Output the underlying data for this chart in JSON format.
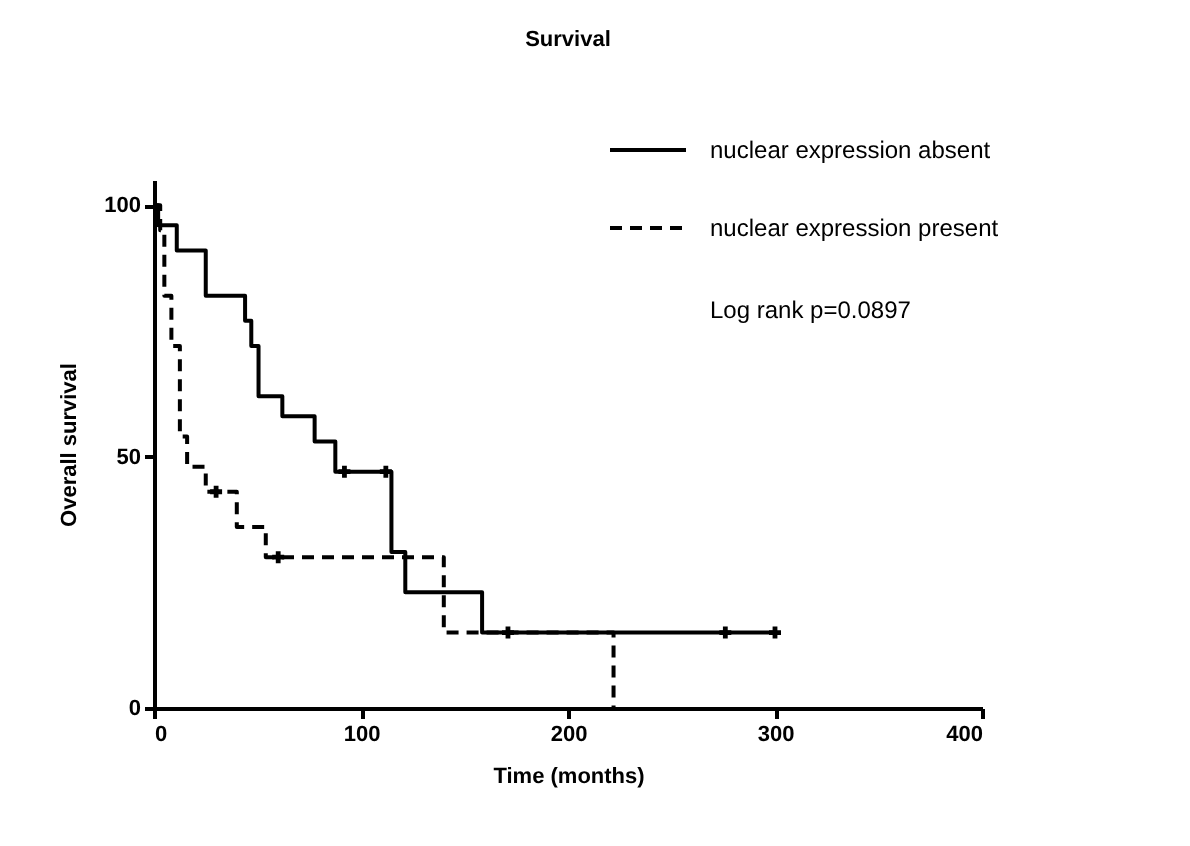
{
  "chart_data": {
    "type": "step",
    "title": "Survival",
    "xlabel": "Time (months)",
    "ylabel": "Overall survival",
    "xlim": [
      0,
      400
    ],
    "xticks": [
      0,
      100,
      200,
      300,
      400
    ],
    "ylim": [
      0,
      105
    ],
    "yticks": [
      0,
      50,
      100
    ],
    "grid": false,
    "legend": "top right",
    "marker": "none",
    "annotations": [
      "Log rank p=0.0897"
    ],
    "series": [
      {
        "name": "nuclear expression absent",
        "color": "#000000",
        "line_style": "solid",
        "x": [
          0,
          2,
          11,
          25,
          44,
          47,
          50.5,
          62,
          77.6,
          87.6,
          114.7,
          121.4,
          158.5,
          300
        ],
        "values": [
          100,
          96,
          91,
          82,
          77,
          72,
          62,
          58,
          53,
          47,
          31,
          23,
          15,
          15
        ]
      },
      {
        "name": "nuclear expression present",
        "color": "#000000",
        "line_style": "dashed",
        "x": [
          0,
          3,
          5,
          8.4,
          12.5,
          16,
          25,
          40,
          54,
          140,
          222
        ],
        "values": [
          100,
          95,
          82,
          72,
          54,
          48,
          43,
          36,
          30,
          15,
          0
        ]
      },
      {
        "type": "scatter",
        "marker": "cross",
        "color": "#000000",
        "x": [
          92,
          112,
          171,
          276,
          300
        ],
        "values": [
          47,
          47,
          15,
          15,
          15
        ]
      },
      {
        "type": "scatter",
        "marker": "cross",
        "color": "#000000",
        "x": [
          30,
          60
        ],
        "values": [
          43,
          30
        ]
      }
    ]
  }
}
